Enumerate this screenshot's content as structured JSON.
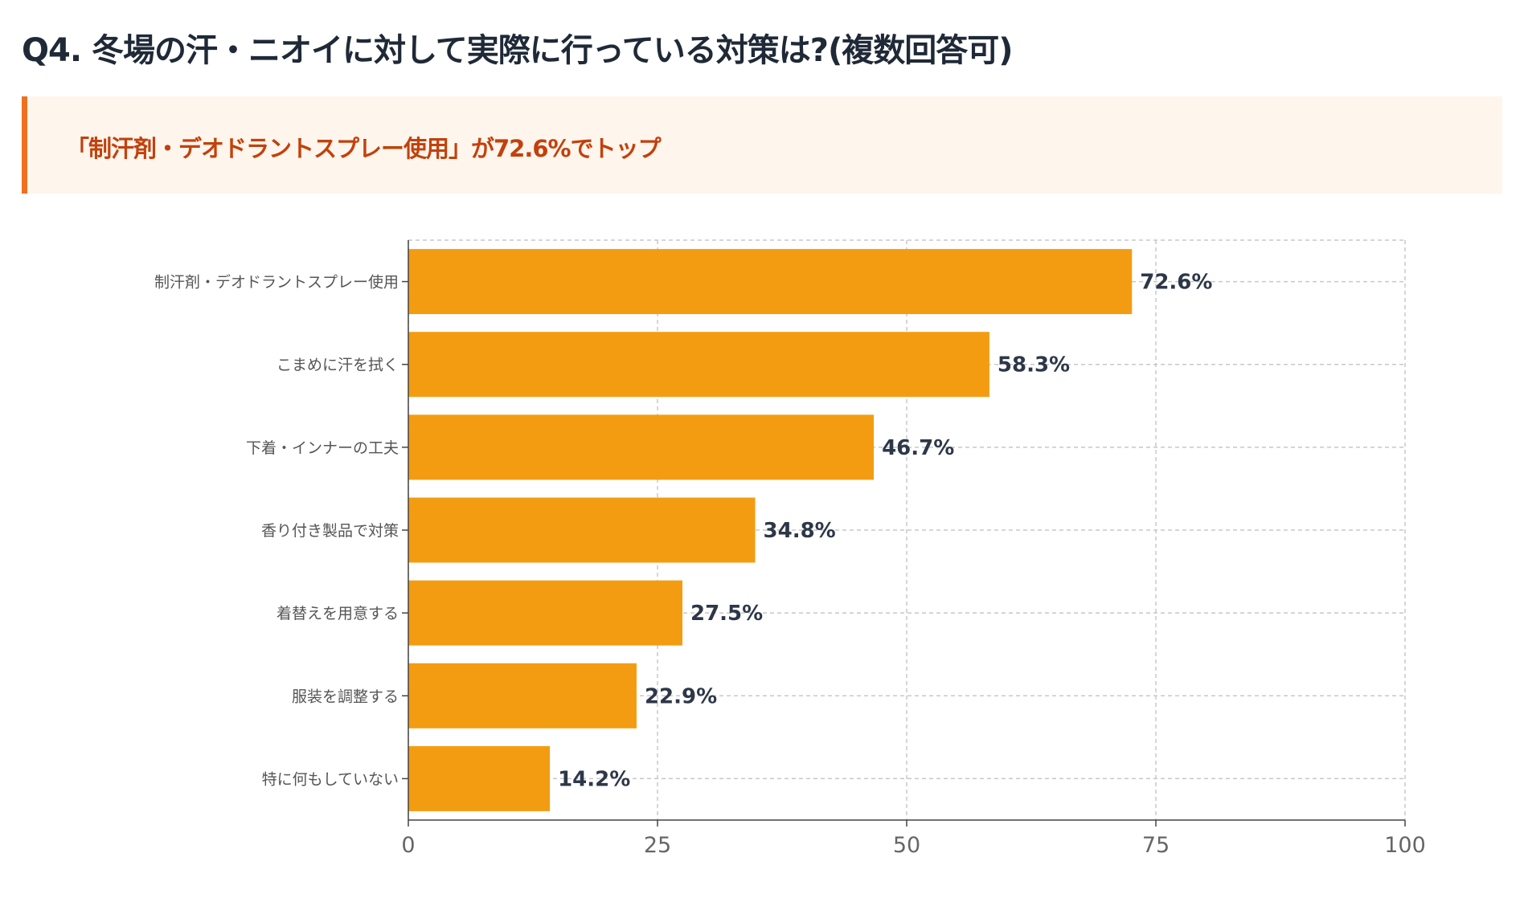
{
  "title": "Q4. 冬場の汗・ニオイに対して実際に行っている対策は?(複数回答可)",
  "highlight": "「制汗剤・デオドラントスプレー使用」が72.6%でトップ",
  "colors": {
    "bar": "#f39c12",
    "accent": "#f07020",
    "highlight_text": "#c2410c",
    "highlight_bg": "#fef5ec"
  },
  "chart_data": {
    "type": "bar",
    "orientation": "horizontal",
    "categories": [
      "制汗剤・デオドラントスプレー使用",
      "こまめに汗を拭く",
      "下着・インナーの工夫",
      "香り付き製品で対策",
      "着替えを用意する",
      "服装を調整する",
      "特に何もしていない"
    ],
    "values": [
      72.6,
      58.3,
      46.7,
      34.8,
      27.5,
      22.9,
      14.2
    ],
    "data_labels": [
      "72.6%",
      "58.3%",
      "46.7%",
      "34.8%",
      "27.5%",
      "22.9%",
      "14.2%"
    ],
    "xlim": [
      0,
      100
    ],
    "x_ticks": [
      "0",
      "25",
      "50",
      "75",
      "100"
    ],
    "grid": true
  }
}
